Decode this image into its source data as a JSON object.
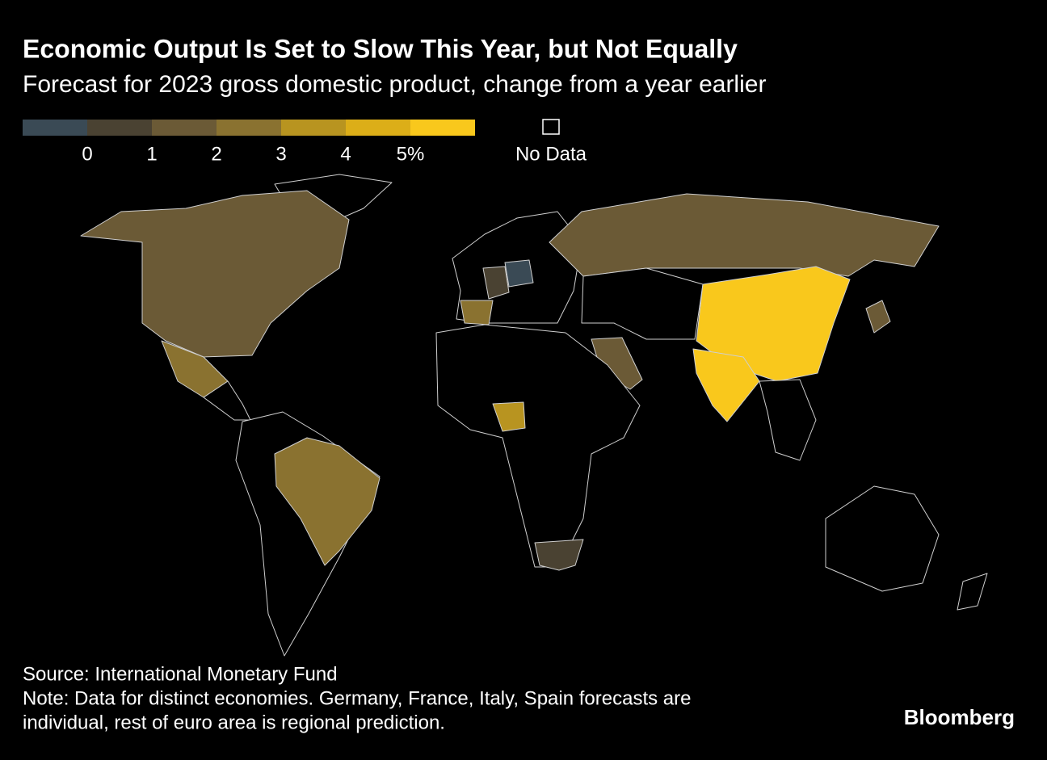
{
  "title": "Economic Output Is Set to Slow This Year, but Not Equally",
  "subtitle": "Forecast for 2023 gross domestic product, change from a year earlier",
  "legend": {
    "colors": [
      "#3a4a55",
      "#4a4232",
      "#6b5a36",
      "#8a7230",
      "#b89420",
      "#dcae18",
      "#f9c81c"
    ],
    "ticks": [
      0,
      1,
      2,
      3,
      4,
      {
        "value": 5,
        "label": "5%"
      }
    ],
    "no_data": "No Data"
  },
  "footer": {
    "source": "Source: International Monetary Fund",
    "note": [
      "Note: Data for distinct economies. Germany, France, Italy, Spain forecasts are",
      "individual, rest of euro area is regional prediction."
    ],
    "brand": "Bloomberg"
  }
}
